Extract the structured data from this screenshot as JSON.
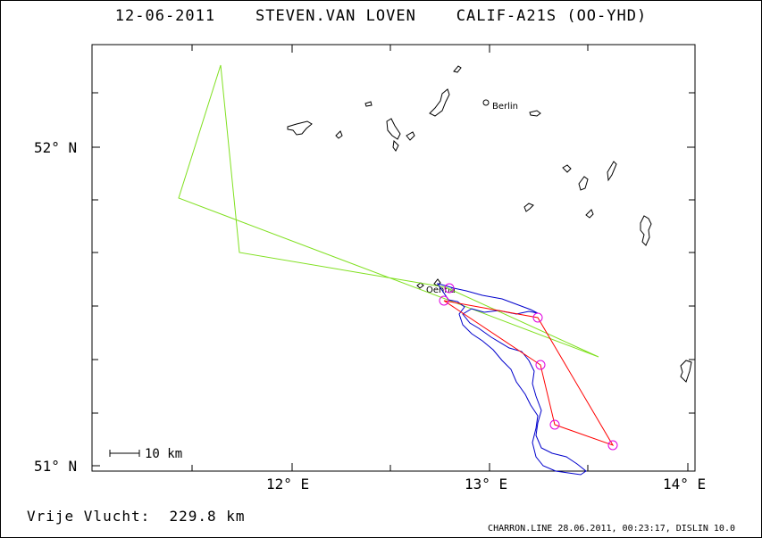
{
  "title": "12-06-2011    STEVEN.VAN LOVEN    CALIF-A21S (OO-YHD)",
  "footer": {
    "distance_label": "Vrije Vlucht:  229.8 km",
    "software": "CHARRON.LINE 28.06.2011, 00:23:17, DISLIN 10.0"
  },
  "axes": {
    "lat_labels": [
      "52° N",
      "51° N"
    ],
    "lon_labels": [
      "12° E",
      "13° E",
      "14° E"
    ]
  },
  "scale_bar": {
    "label": "10 km"
  },
  "places": [
    {
      "name": "Berlin"
    },
    {
      "name": "Oehna"
    }
  ],
  "colors": {
    "declared_task": "#80e020",
    "scored_triangle": "#ff0000",
    "gps_track": "#0000cc",
    "turnpoint": "#e000e0",
    "lakes": "#000000"
  }
}
